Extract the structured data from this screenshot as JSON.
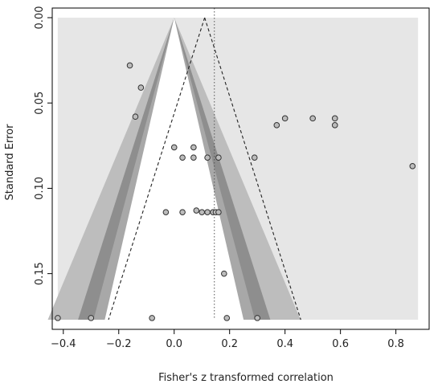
{
  "chart_data": {
    "type": "scatter",
    "subtype": "contour-enhanced funnel plot",
    "title": "",
    "xlabel": "Fisher's z transformed correlation",
    "ylabel": "Standard Error",
    "xlim": [
      -0.44,
      0.92
    ],
    "ylim": [
      0.0,
      0.177
    ],
    "y_reversed": true,
    "x_ticks": [
      -0.4,
      -0.2,
      0.0,
      0.2,
      0.4,
      0.6,
      0.8
    ],
    "x_tick_labels": [
      "−0.4",
      "−0.2",
      "0.0",
      "0.2",
      "0.4",
      "0.6",
      "0.8"
    ],
    "y_ticks": [
      0.0,
      0.05,
      0.1,
      0.15
    ],
    "y_tick_labels": [
      "0.00",
      "0.05",
      "0.10",
      "0.15"
    ],
    "contour_center": 0.0,
    "contour_levels_z": [
      1.645,
      1.96,
      2.576
    ],
    "pooled_estimate": 0.145,
    "funnel_center": 0.11,
    "funnel_z": 1.96,
    "colors": {
      "background_region": "#e6e6e6",
      "band_outer": "#bdbdbd",
      "band_middle": "#8e8e8e",
      "band_inner": "#a8a8a8",
      "center_region": "#ffffff",
      "point_fill": "#bcbcbc",
      "point_stroke": "#333333"
    },
    "points": [
      {
        "x": -0.16,
        "y": 0.028
      },
      {
        "x": -0.12,
        "y": 0.041
      },
      {
        "x": -0.14,
        "y": 0.058
      },
      {
        "x": 0.37,
        "y": 0.063
      },
      {
        "x": 0.4,
        "y": 0.059
      },
      {
        "x": 0.5,
        "y": 0.059
      },
      {
        "x": 0.58,
        "y": 0.059
      },
      {
        "x": 0.58,
        "y": 0.063
      },
      {
        "x": 0.0,
        "y": 0.076
      },
      {
        "x": 0.07,
        "y": 0.076
      },
      {
        "x": 0.03,
        "y": 0.082
      },
      {
        "x": 0.07,
        "y": 0.082
      },
      {
        "x": 0.12,
        "y": 0.082
      },
      {
        "x": 0.16,
        "y": 0.082
      },
      {
        "x": 0.29,
        "y": 0.082
      },
      {
        "x": 0.86,
        "y": 0.087
      },
      {
        "x": -0.03,
        "y": 0.114
      },
      {
        "x": 0.03,
        "y": 0.114
      },
      {
        "x": 0.08,
        "y": 0.113
      },
      {
        "x": 0.1,
        "y": 0.114
      },
      {
        "x": 0.12,
        "y": 0.114
      },
      {
        "x": 0.14,
        "y": 0.114
      },
      {
        "x": 0.15,
        "y": 0.114
      },
      {
        "x": 0.16,
        "y": 0.114
      },
      {
        "x": 0.18,
        "y": 0.15
      },
      {
        "x": -0.42,
        "y": 0.176
      },
      {
        "x": -0.3,
        "y": 0.176
      },
      {
        "x": -0.08,
        "y": 0.176
      },
      {
        "x": 0.19,
        "y": 0.176
      },
      {
        "x": 0.3,
        "y": 0.176
      }
    ]
  }
}
